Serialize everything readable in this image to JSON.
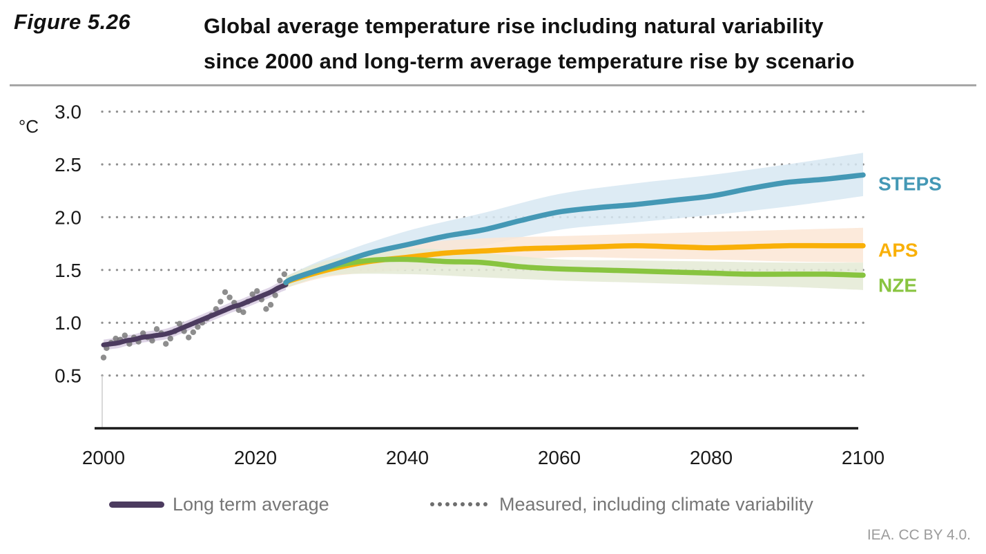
{
  "header": {
    "figure_label": "Figure 5.26",
    "marker_color": "#2E9DB3",
    "title_line1": "Global average temperature rise including natural variability",
    "title_line2": "since 2000 and long-term average temperature rise by scenario"
  },
  "legend": {
    "items": [
      {
        "label": "Long term average",
        "swatch": "line",
        "color": "#4C3B5F"
      },
      {
        "label": "Measured, including climate variability",
        "swatch": "dots",
        "color": "#757575"
      }
    ]
  },
  "footer": {
    "credit": "IEA. CC BY 4.0."
  },
  "chart_data": {
    "type": "line",
    "title": "Global average temperature rise including natural variability since 2000 and long-term average temperature rise by scenario",
    "x_axis": {
      "range": [
        1998,
        2107
      ],
      "ticks": [
        2000,
        2020,
        2040,
        2060,
        2080,
        2100
      ]
    },
    "y_axis": {
      "unit": "°C",
      "range": [
        0,
        3.0
      ],
      "ticks": [
        {
          "value": 0.5,
          "label": "0.5"
        },
        {
          "value": 1.0,
          "label": "1.0"
        },
        {
          "value": 1.5,
          "label": "1.5"
        },
        {
          "value": 2.0,
          "label": "2.0"
        },
        {
          "value": 2.5,
          "label": "2.5"
        },
        {
          "value": 3.0,
          "label": "3.0"
        }
      ]
    },
    "grid": "dotted-horizontal",
    "gridline_color": "#8f8f8f",
    "axis_color": "#1a1a1a",
    "history": {
      "name": "Long term average",
      "color": "#4C3B5F",
      "band_color": "#DCD2E5",
      "band_halfwidth": 0.05,
      "x": [
        2000,
        2001,
        2002,
        2003,
        2004,
        2005,
        2006,
        2007,
        2008,
        2009,
        2010,
        2011,
        2012,
        2013,
        2014,
        2015,
        2016,
        2017,
        2018,
        2019,
        2020,
        2021,
        2022,
        2023,
        2024
      ],
      "y": [
        0.79,
        0.8,
        0.81,
        0.83,
        0.84,
        0.86,
        0.87,
        0.88,
        0.89,
        0.91,
        0.94,
        0.97,
        1.0,
        1.03,
        1.06,
        1.09,
        1.12,
        1.15,
        1.17,
        1.2,
        1.23,
        1.26,
        1.29,
        1.33,
        1.36
      ]
    },
    "scatter": {
      "name": "Measured, including climate variability",
      "color": "#6E6E6E",
      "points": [
        [
          2000.0,
          0.67
        ],
        [
          2000.4,
          0.76
        ],
        [
          2001.0,
          0.81
        ],
        [
          2001.6,
          0.85
        ],
        [
          2002.2,
          0.84
        ],
        [
          2002.8,
          0.88
        ],
        [
          2003.4,
          0.8
        ],
        [
          2004.0,
          0.86
        ],
        [
          2004.6,
          0.82
        ],
        [
          2005.2,
          0.9
        ],
        [
          2005.8,
          0.86
        ],
        [
          2006.4,
          0.83
        ],
        [
          2007.0,
          0.94
        ],
        [
          2007.6,
          0.9
        ],
        [
          2008.2,
          0.8
        ],
        [
          2008.8,
          0.85
        ],
        [
          2009.4,
          0.92
        ],
        [
          2010.0,
          0.99
        ],
        [
          2010.6,
          0.92
        ],
        [
          2011.2,
          0.86
        ],
        [
          2011.8,
          0.91
        ],
        [
          2012.4,
          0.96
        ],
        [
          2013.0,
          1.0
        ],
        [
          2013.6,
          1.04
        ],
        [
          2014.2,
          1.07
        ],
        [
          2014.8,
          1.13
        ],
        [
          2015.4,
          1.2
        ],
        [
          2016.0,
          1.29
        ],
        [
          2016.6,
          1.24
        ],
        [
          2017.2,
          1.19
        ],
        [
          2017.8,
          1.12
        ],
        [
          2018.4,
          1.1
        ],
        [
          2019.0,
          1.2
        ],
        [
          2019.6,
          1.27
        ],
        [
          2020.2,
          1.3
        ],
        [
          2020.8,
          1.22
        ],
        [
          2021.4,
          1.13
        ],
        [
          2022.0,
          1.17
        ],
        [
          2022.6,
          1.26
        ],
        [
          2023.2,
          1.4
        ],
        [
          2023.8,
          1.46
        ]
      ]
    },
    "scenarios": [
      {
        "name": "STEPS",
        "color": "#4498B5",
        "band_color": "#D7E8F2",
        "label_dy": 22,
        "x": [
          2024,
          2025,
          2030,
          2035,
          2040,
          2045,
          2050,
          2055,
          2060,
          2065,
          2070,
          2075,
          2080,
          2085,
          2090,
          2095,
          2100
        ],
        "y": [
          1.38,
          1.42,
          1.54,
          1.66,
          1.74,
          1.82,
          1.88,
          1.97,
          2.05,
          2.09,
          2.12,
          2.16,
          2.2,
          2.27,
          2.33,
          2.36,
          2.4
        ],
        "band_x": [
          2024,
          2030,
          2040,
          2050,
          2060,
          2070,
          2080,
          2090,
          2100
        ],
        "band_low": [
          1.33,
          1.46,
          1.58,
          1.73,
          1.88,
          1.95,
          2.02,
          2.1,
          2.2
        ],
        "band_high": [
          1.44,
          1.63,
          1.87,
          2.04,
          2.22,
          2.32,
          2.4,
          2.5,
          2.61
        ]
      },
      {
        "name": "APS",
        "color": "#F9B008",
        "band_color": "#FBE6D5",
        "label_dy": 16,
        "x": [
          2024,
          2025,
          2030,
          2035,
          2040,
          2045,
          2050,
          2055,
          2060,
          2065,
          2070,
          2075,
          2080,
          2085,
          2090,
          2095,
          2100
        ],
        "y": [
          1.38,
          1.41,
          1.51,
          1.58,
          1.62,
          1.66,
          1.68,
          1.7,
          1.71,
          1.72,
          1.73,
          1.72,
          1.71,
          1.72,
          1.73,
          1.73,
          1.73
        ],
        "band_x": [
          2024,
          2030,
          2040,
          2050,
          2060,
          2070,
          2080,
          2090,
          2100
        ],
        "band_low": [
          1.33,
          1.44,
          1.5,
          1.56,
          1.62,
          1.61,
          1.6,
          1.58,
          1.57
        ],
        "band_high": [
          1.44,
          1.58,
          1.74,
          1.8,
          1.82,
          1.84,
          1.86,
          1.88,
          1.9
        ]
      },
      {
        "name": "NZE",
        "color": "#88C440",
        "band_color": "#E4EAD5",
        "label_dy": 24,
        "x": [
          2024,
          2025,
          2030,
          2035,
          2040,
          2045,
          2050,
          2055,
          2060,
          2065,
          2070,
          2075,
          2080,
          2085,
          2090,
          2095,
          2100
        ],
        "y": [
          1.38,
          1.42,
          1.53,
          1.59,
          1.6,
          1.58,
          1.57,
          1.53,
          1.51,
          1.5,
          1.49,
          1.48,
          1.47,
          1.46,
          1.46,
          1.46,
          1.45
        ],
        "band_x": [
          2024,
          2030,
          2040,
          2050,
          2060,
          2070,
          2080,
          2090,
          2100
        ],
        "band_low": [
          1.33,
          1.45,
          1.46,
          1.43,
          1.4,
          1.38,
          1.36,
          1.34,
          1.31
        ],
        "band_high": [
          1.44,
          1.6,
          1.7,
          1.66,
          1.6,
          1.59,
          1.58,
          1.57,
          1.57
        ]
      }
    ]
  }
}
